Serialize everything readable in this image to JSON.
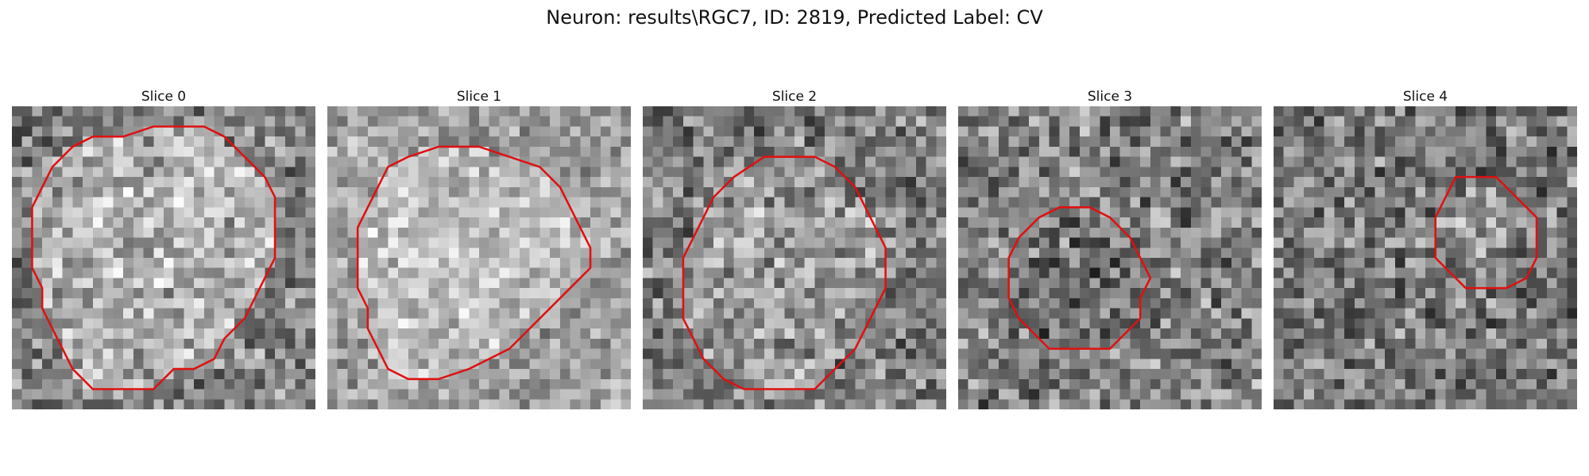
{
  "figure": {
    "title": "Neuron: results\\RGC7, ID: 2819, Predicted Label: CV"
  },
  "contour_color": "#e01010",
  "panels": [
    {
      "title": "Slice 0",
      "seed": 11,
      "base": 130,
      "contrast": 110,
      "blob_boost": 45,
      "contour": [
        [
          14,
          2
        ],
        [
          19,
          2
        ],
        [
          21,
          3
        ],
        [
          23,
          5
        ],
        [
          25,
          7
        ],
        [
          26,
          9
        ],
        [
          26,
          11
        ],
        [
          26,
          13
        ],
        [
          26,
          15
        ],
        [
          25,
          17
        ],
        [
          24,
          19
        ],
        [
          23,
          21
        ],
        [
          21,
          23
        ],
        [
          20,
          25
        ],
        [
          18,
          26
        ],
        [
          16,
          26
        ],
        [
          14,
          28
        ],
        [
          11,
          28
        ],
        [
          8,
          28
        ],
        [
          6,
          26
        ],
        [
          5,
          24
        ],
        [
          4,
          22
        ],
        [
          3,
          20
        ],
        [
          3,
          18
        ],
        [
          2,
          16
        ],
        [
          2,
          14
        ],
        [
          2,
          12
        ],
        [
          2,
          10
        ],
        [
          3,
          8
        ],
        [
          4,
          6
        ],
        [
          6,
          4
        ],
        [
          8,
          3
        ],
        [
          11,
          3
        ]
      ]
    },
    {
      "title": "Slice 1",
      "seed": 23,
      "base": 160,
      "contrast": 85,
      "blob_boost": 30,
      "contour": [
        [
          11,
          4
        ],
        [
          15,
          4
        ],
        [
          18,
          5
        ],
        [
          21,
          6
        ],
        [
          23,
          8
        ],
        [
          24,
          10
        ],
        [
          25,
          12
        ],
        [
          26,
          14
        ],
        [
          26,
          16
        ],
        [
          24,
          18
        ],
        [
          22,
          20
        ],
        [
          20,
          22
        ],
        [
          18,
          24
        ],
        [
          16,
          25
        ],
        [
          14,
          26
        ],
        [
          11,
          27
        ],
        [
          8,
          27
        ],
        [
          6,
          26
        ],
        [
          5,
          24
        ],
        [
          4,
          22
        ],
        [
          4,
          20
        ],
        [
          3,
          18
        ],
        [
          3,
          16
        ],
        [
          3,
          14
        ],
        [
          3,
          12
        ],
        [
          4,
          10
        ],
        [
          5,
          8
        ],
        [
          6,
          6
        ],
        [
          8,
          5
        ]
      ]
    },
    {
      "title": "Slice 2",
      "seed": 37,
      "base": 125,
      "contrast": 115,
      "blob_boost": 30,
      "contour": [
        [
          12,
          5
        ],
        [
          17,
          5
        ],
        [
          19,
          6
        ],
        [
          21,
          8
        ],
        [
          22,
          10
        ],
        [
          23,
          12
        ],
        [
          24,
          14
        ],
        [
          24,
          16
        ],
        [
          24,
          18
        ],
        [
          23,
          20
        ],
        [
          22,
          22
        ],
        [
          21,
          24
        ],
        [
          19,
          26
        ],
        [
          17,
          28
        ],
        [
          14,
          28
        ],
        [
          10,
          28
        ],
        [
          8,
          27
        ],
        [
          6,
          25
        ],
        [
          5,
          23
        ],
        [
          4,
          21
        ],
        [
          4,
          19
        ],
        [
          4,
          17
        ],
        [
          4,
          15
        ],
        [
          5,
          13
        ],
        [
          6,
          11
        ],
        [
          7,
          9
        ],
        [
          9,
          7
        ]
      ]
    },
    {
      "title": "Slice 3",
      "seed": 51,
      "base": 128,
      "contrast": 120,
      "blob_boost": -15,
      "contour": [
        [
          10,
          10
        ],
        [
          13,
          10
        ],
        [
          15,
          11
        ],
        [
          17,
          13
        ],
        [
          18,
          15
        ],
        [
          19,
          17
        ],
        [
          18,
          19
        ],
        [
          18,
          21
        ],
        [
          17,
          22
        ],
        [
          15,
          24
        ],
        [
          12,
          24
        ],
        [
          9,
          24
        ],
        [
          7,
          22
        ],
        [
          6,
          21
        ],
        [
          5,
          19
        ],
        [
          5,
          17
        ],
        [
          5,
          15
        ],
        [
          6,
          13
        ],
        [
          7,
          12
        ],
        [
          8,
          11
        ]
      ]
    },
    {
      "title": "Slice 4",
      "seed": 67,
      "base": 122,
      "contrast": 115,
      "blob_boost": 20,
      "contour": [
        [
          18,
          7
        ],
        [
          22,
          7
        ],
        [
          23,
          8
        ],
        [
          24,
          9
        ],
        [
          25,
          10
        ],
        [
          26,
          11
        ],
        [
          26,
          13
        ],
        [
          26,
          15
        ],
        [
          25,
          17
        ],
        [
          23,
          18
        ],
        [
          21,
          18
        ],
        [
          19,
          18
        ],
        [
          18,
          17
        ],
        [
          17,
          16
        ],
        [
          16,
          15
        ],
        [
          16,
          13
        ],
        [
          16,
          11
        ],
        [
          17,
          9
        ]
      ]
    }
  ]
}
